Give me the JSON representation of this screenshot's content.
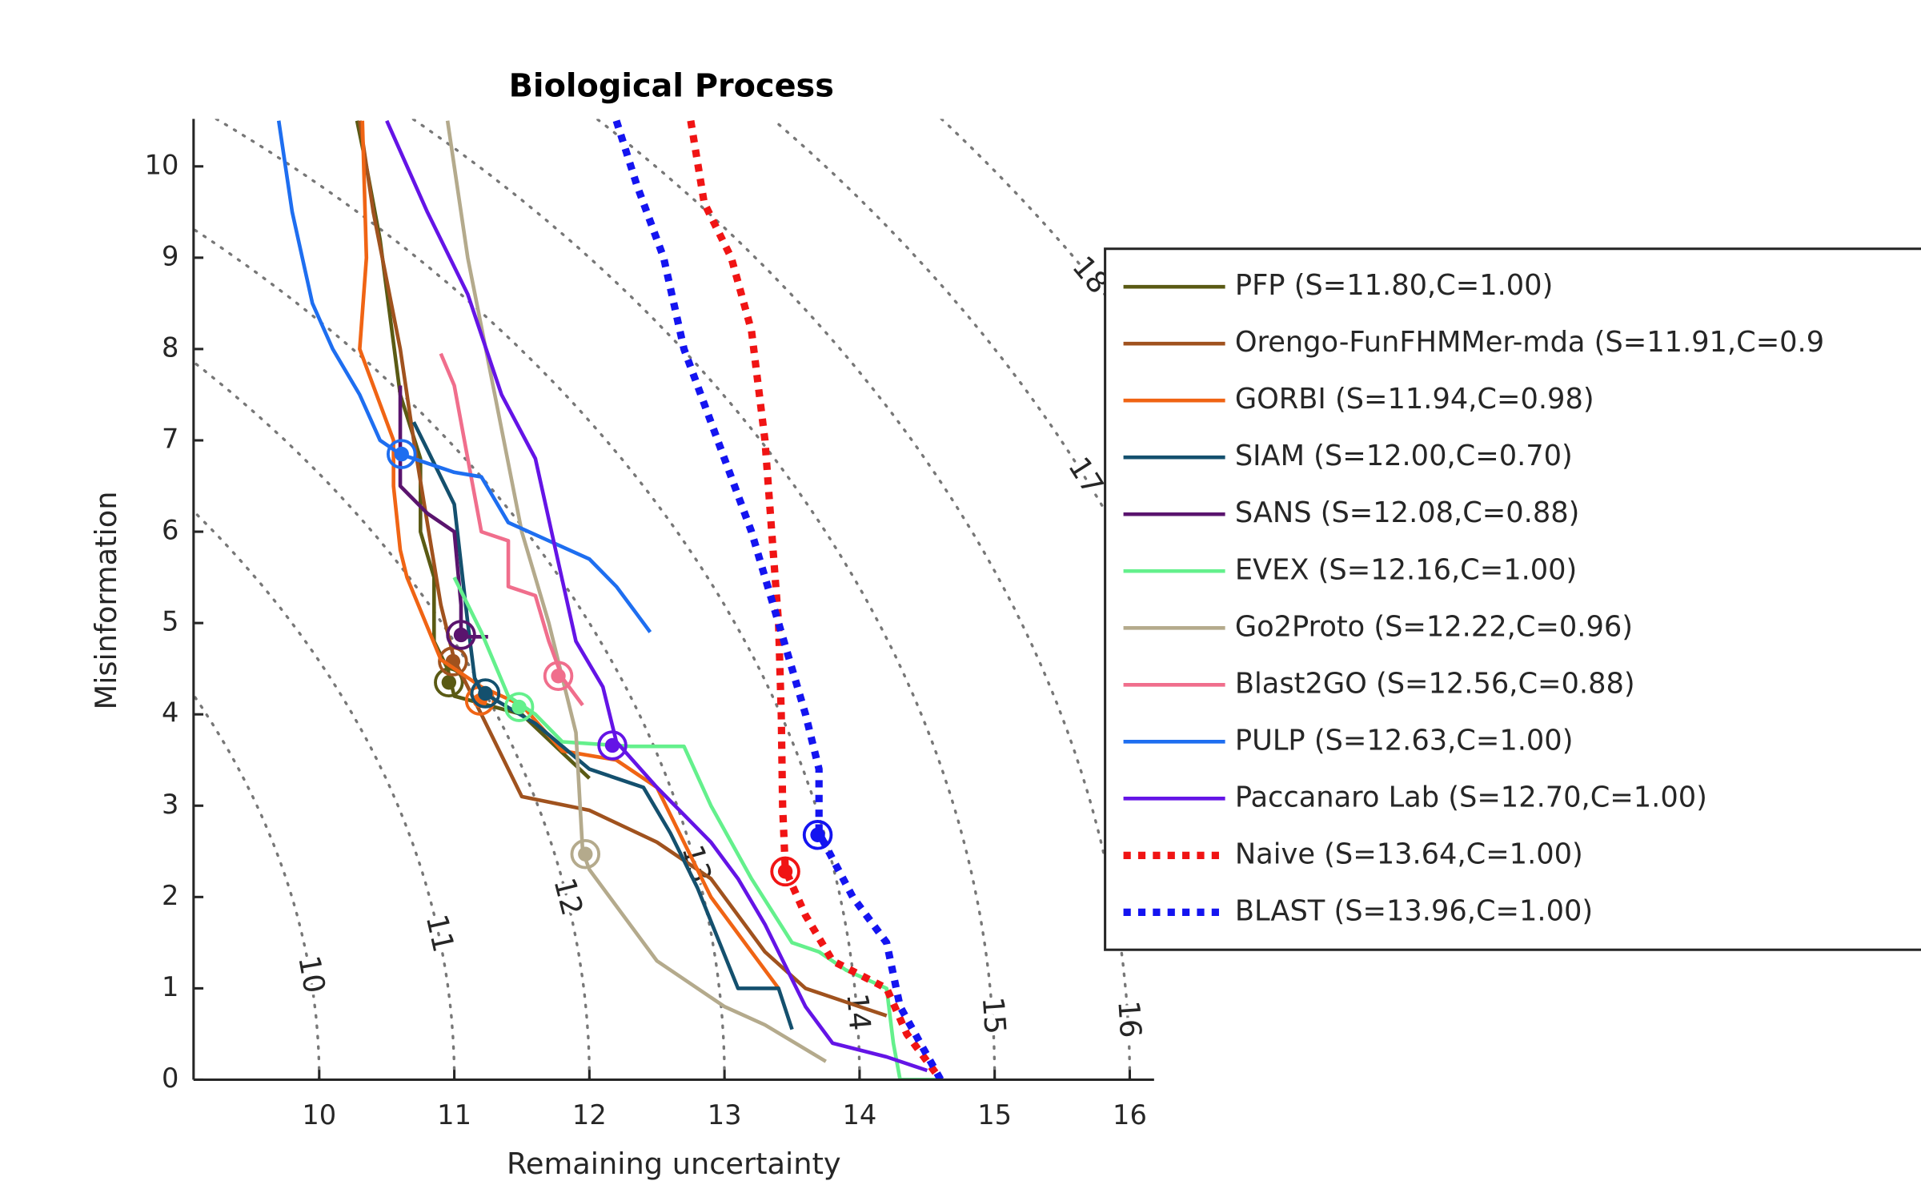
{
  "chart_data": {
    "type": "line",
    "title": "Biological Process",
    "xlabel": "Remaining uncertainty",
    "ylabel": "Misinformation",
    "xlim": [
      9.07,
      16.18
    ],
    "ylim": [
      0,
      10.52
    ],
    "xticks": [
      10,
      11,
      12,
      13,
      14,
      15,
      16
    ],
    "yticks": [
      0,
      1,
      2,
      3,
      4,
      5,
      6,
      7,
      8,
      9,
      10
    ],
    "contour_levels": [
      10,
      11,
      12,
      13,
      14,
      15,
      16,
      17,
      18
    ],
    "series": [
      {
        "name": "PFP (S=11.80,C=1.00)",
        "color": "#5a5a14",
        "style": "solid",
        "x": [
          10.28,
          10.35,
          10.45,
          10.6,
          10.75,
          10.75,
          10.85,
          10.85,
          10.95,
          11.0,
          11.5,
          12.0
        ],
        "values": [
          10.5,
          10.0,
          9.2,
          7.5,
          6.8,
          6.0,
          5.5,
          4.8,
          4.5,
          4.2,
          4.0,
          3.3
        ],
        "marker_x": 10.96,
        "marker_y": 4.35
      },
      {
        "name": "Orengo-FunFHMMer-mda (S=11.91,C=0.9",
        "color": "#a0521e",
        "style": "solid",
        "x": [
          10.3,
          10.4,
          10.6,
          10.7,
          10.9,
          11.0,
          11.2,
          11.5,
          12.0,
          12.5,
          12.9,
          13.3,
          13.6,
          14.0,
          14.2
        ],
        "values": [
          10.5,
          9.5,
          8.0,
          7.0,
          5.2,
          4.6,
          4.0,
          3.1,
          2.95,
          2.6,
          2.2,
          1.4,
          1.0,
          0.8,
          0.7
        ],
        "marker_x": 10.99,
        "marker_y": 4.58
      },
      {
        "name": "GORBI (S=11.94,C=0.98)",
        "color": "#f06414",
        "style": "solid",
        "x": [
          10.32,
          10.35,
          10.3,
          10.55,
          10.55,
          10.6,
          10.65,
          10.9,
          11.2,
          11.5,
          11.8,
          12.2,
          12.5,
          12.9,
          13.2,
          13.4
        ],
        "values": [
          10.5,
          9.0,
          8.0,
          7.0,
          6.5,
          5.8,
          5.5,
          4.6,
          4.3,
          4.1,
          3.6,
          3.5,
          3.2,
          2.0,
          1.4,
          1.0
        ],
        "marker_x": 11.19,
        "marker_y": 4.15
      },
      {
        "name": "SIAM (S=12.00,C=0.70)",
        "color": "#14506e",
        "style": "solid",
        "x": [
          10.7,
          10.8,
          11.0,
          11.1,
          11.15,
          11.2,
          11.6,
          12.0,
          12.4,
          12.6,
          12.8,
          13.1,
          13.4,
          13.5
        ],
        "values": [
          7.2,
          6.9,
          6.3,
          5.0,
          4.4,
          4.25,
          3.9,
          3.4,
          3.2,
          2.7,
          2.1,
          1.0,
          1.0,
          0.55
        ],
        "marker_x": 11.23,
        "marker_y": 4.23
      },
      {
        "name": "SANS (S=12.08,C=0.88)",
        "color": "#5a146e",
        "style": "solid",
        "x": [
          10.6,
          10.6,
          10.8,
          11.0,
          11.05,
          11.05,
          11.25
        ],
        "values": [
          7.6,
          6.5,
          6.2,
          6.0,
          5.2,
          4.85,
          4.85
        ],
        "marker_x": 11.05,
        "marker_y": 4.87
      },
      {
        "name": "EVEX (S=12.16,C=1.00)",
        "color": "#64f08c",
        "style": "solid",
        "x": [
          11.0,
          11.2,
          11.4,
          11.6,
          11.8,
          12.3,
          12.7,
          12.9,
          13.2,
          13.5,
          13.7,
          13.9,
          14.2,
          14.25,
          14.3,
          14.6
        ],
        "values": [
          5.5,
          4.9,
          4.2,
          4.0,
          3.7,
          3.65,
          3.65,
          3.0,
          2.2,
          1.5,
          1.4,
          1.2,
          1.0,
          0.4,
          0.0,
          0.0
        ],
        "marker_x": 11.48,
        "marker_y": 4.08
      },
      {
        "name": "Go2Proto (S=12.22,C=0.96)",
        "color": "#b4aa8c",
        "style": "solid",
        "x": [
          10.95,
          11.1,
          11.3,
          11.5,
          11.7,
          11.9,
          11.95,
          12.0,
          12.5,
          13.0,
          13.3,
          13.75
        ],
        "values": [
          10.5,
          9.0,
          7.5,
          6.0,
          5.0,
          3.8,
          2.5,
          2.3,
          1.3,
          0.8,
          0.6,
          0.2
        ],
        "marker_x": 11.97,
        "marker_y": 2.47
      },
      {
        "name": "Blast2GO (S=12.56,C=0.88)",
        "color": "#f06e8c",
        "style": "solid",
        "x": [
          10.9,
          11.0,
          11.1,
          11.2,
          11.4,
          11.4,
          11.6,
          11.7,
          11.8,
          11.95
        ],
        "values": [
          7.95,
          7.6,
          6.8,
          6.0,
          5.9,
          5.4,
          5.3,
          4.8,
          4.4,
          4.1
        ],
        "marker_x": 11.77,
        "marker_y": 4.42
      },
      {
        "name": "PULP (S=12.63,C=1.00)",
        "color": "#1e6ef0",
        "style": "solid",
        "x": [
          9.7,
          9.8,
          9.95,
          10.1,
          10.3,
          10.45,
          10.6,
          11.0,
          11.2,
          11.4,
          11.7,
          12.0,
          12.2,
          12.35,
          12.45
        ],
        "values": [
          10.5,
          9.5,
          8.5,
          8.0,
          7.5,
          7.0,
          6.85,
          6.65,
          6.6,
          6.1,
          5.9,
          5.7,
          5.4,
          5.1,
          4.9
        ],
        "marker_x": 10.61,
        "marker_y": 6.85
      },
      {
        "name": "Paccanaro Lab (S=12.70,C=1.00)",
        "color": "#6414e6",
        "style": "solid",
        "x": [
          10.5,
          10.8,
          11.1,
          11.35,
          11.6,
          11.75,
          11.9,
          12.1,
          12.2,
          12.5,
          12.9,
          13.1,
          13.3,
          13.6,
          13.8,
          14.2,
          14.5
        ],
        "values": [
          10.5,
          9.5,
          8.6,
          7.5,
          6.8,
          5.8,
          4.8,
          4.3,
          3.7,
          3.2,
          2.6,
          2.2,
          1.7,
          0.8,
          0.4,
          0.25,
          0.1
        ],
        "marker_x": 12.17,
        "marker_y": 3.66
      },
      {
        "name": "Naive (S=13.64,C=1.00)",
        "color": "#f01414",
        "style": "dotted",
        "x": [
          12.75,
          12.85,
          13.05,
          13.2,
          13.3,
          13.35,
          13.4,
          13.42,
          13.43,
          13.45,
          13.6,
          13.8,
          14.2,
          14.35,
          14.6
        ],
        "values": [
          10.5,
          9.6,
          9.0,
          8.2,
          7.0,
          6.0,
          5.0,
          4.0,
          3.0,
          2.3,
          1.8,
          1.3,
          1.0,
          0.5,
          0.0
        ],
        "marker_x": 13.45,
        "marker_y": 2.28
      },
      {
        "name": "BLAST (S=13.96,C=1.00)",
        "color": "#1414f0",
        "style": "dotted",
        "x": [
          12.2,
          12.35,
          12.55,
          12.7,
          12.95,
          13.2,
          13.4,
          13.6,
          13.7,
          13.7,
          13.95,
          14.2,
          14.3,
          14.45,
          14.6
        ],
        "values": [
          10.5,
          9.8,
          9.0,
          8.0,
          7.0,
          6.0,
          5.0,
          4.0,
          3.4,
          2.7,
          2.0,
          1.5,
          0.8,
          0.4,
          0.0
        ],
        "marker_x": 13.69,
        "marker_y": 2.68
      }
    ]
  }
}
